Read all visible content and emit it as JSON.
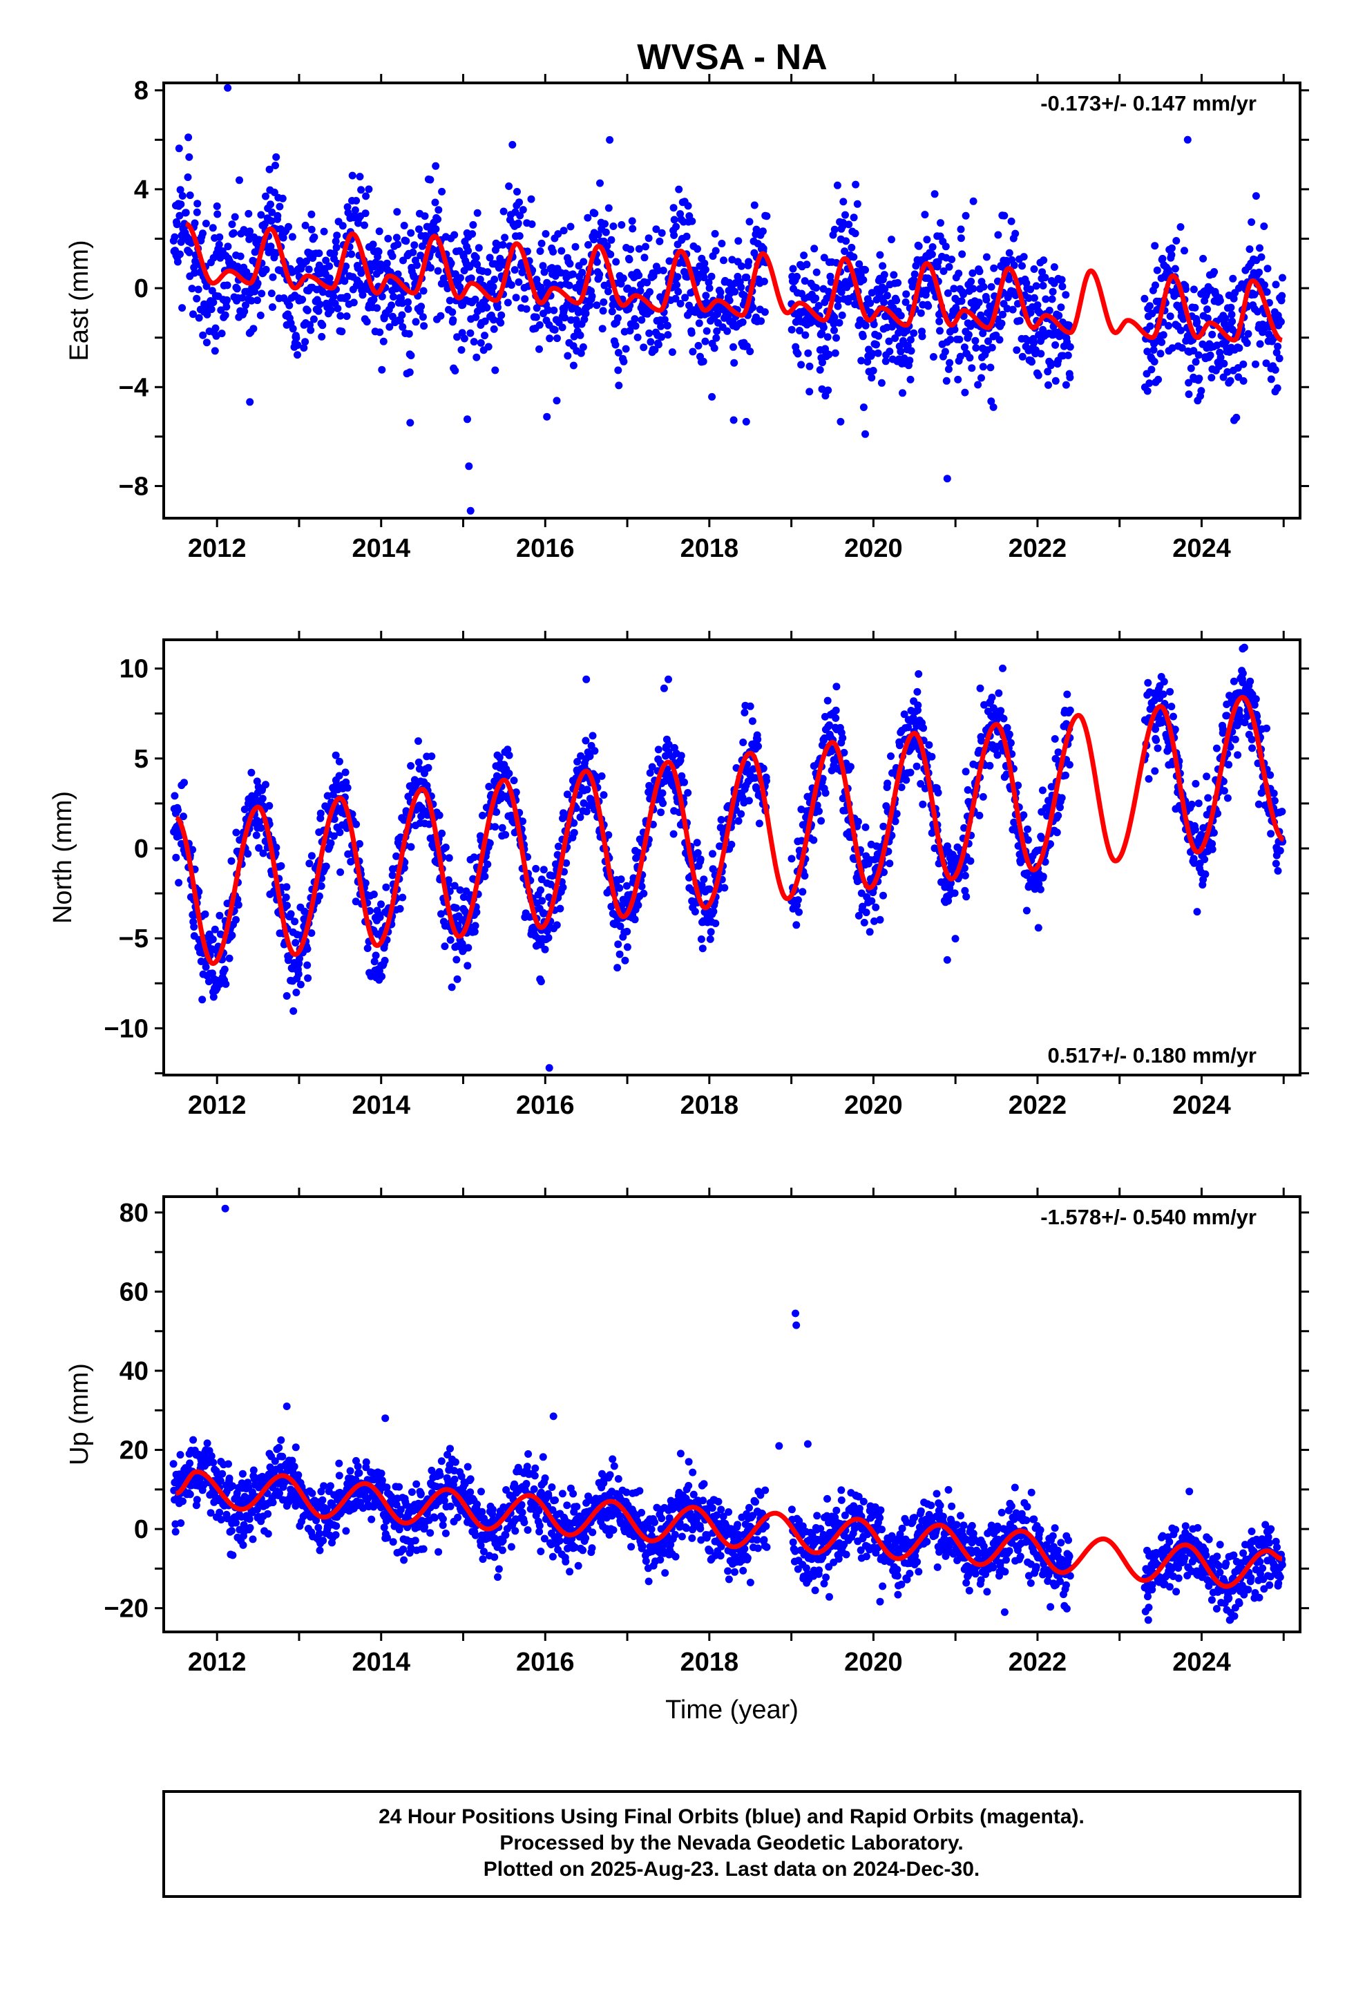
{
  "title": "WVSA - NA",
  "colors": {
    "points": "#0000ff",
    "model": "#ff0000",
    "frame": "#000000"
  },
  "chart_data": [
    {
      "type": "scatter",
      "panel": "east",
      "ylabel": "East (mm)",
      "xlim": [
        2011.35,
        2025.2
      ],
      "ylim": [
        -9.3,
        8.3
      ],
      "x_ticks": [
        2012,
        2014,
        2016,
        2018,
        2020,
        2022,
        2024
      ],
      "y_ticks": [
        -8,
        -4,
        0,
        4,
        8
      ],
      "rate_text": "-0.173+/- 0.147 mm/yr",
      "rate_position": "top-right",
      "gaps": [
        [
          2018.7,
          2019.0
        ],
        [
          2022.4,
          2023.3
        ]
      ],
      "model_peaks": [
        [
          2011.62,
          2.6
        ],
        [
          2012.15,
          0.7
        ],
        [
          2012.65,
          2.4
        ],
        [
          2013.1,
          0.5
        ],
        [
          2013.65,
          2.2
        ],
        [
          2014.1,
          0.5
        ],
        [
          2014.65,
          2.1
        ],
        [
          2015.1,
          0.2
        ],
        [
          2015.65,
          1.8
        ],
        [
          2016.1,
          0.0
        ],
        [
          2016.65,
          1.7
        ],
        [
          2017.1,
          -0.3
        ],
        [
          2017.65,
          1.5
        ],
        [
          2018.1,
          -0.5
        ],
        [
          2018.65,
          1.4
        ],
        [
          2019.1,
          -0.6
        ],
        [
          2019.65,
          1.2
        ],
        [
          2020.1,
          -0.8
        ],
        [
          2020.65,
          1.0
        ],
        [
          2021.1,
          -0.9
        ],
        [
          2021.65,
          0.8
        ],
        [
          2022.1,
          -1.1
        ],
        [
          2022.65,
          0.7
        ],
        [
          2023.1,
          -1.3
        ],
        [
          2023.65,
          0.5
        ],
        [
          2024.1,
          -1.4
        ],
        [
          2024.62,
          0.3
        ],
        [
          2024.98,
          -2.1
        ]
      ],
      "model_troughs": [
        [
          2011.95,
          0.2
        ],
        [
          2012.4,
          0.2
        ],
        [
          2012.95,
          0.0
        ],
        [
          2013.4,
          0.0
        ],
        [
          2013.95,
          -0.2
        ],
        [
          2014.4,
          -0.2
        ],
        [
          2014.95,
          -0.4
        ],
        [
          2015.4,
          -0.5
        ],
        [
          2015.95,
          -0.6
        ],
        [
          2016.4,
          -0.6
        ],
        [
          2016.95,
          -0.7
        ],
        [
          2017.4,
          -0.9
        ],
        [
          2017.95,
          -0.9
        ],
        [
          2018.4,
          -1.1
        ],
        [
          2018.95,
          -1.0
        ],
        [
          2019.4,
          -1.3
        ],
        [
          2019.95,
          -1.3
        ],
        [
          2020.4,
          -1.5
        ],
        [
          2020.95,
          -1.5
        ],
        [
          2021.4,
          -1.6
        ],
        [
          2021.95,
          -1.6
        ],
        [
          2022.4,
          -1.8
        ],
        [
          2022.95,
          -1.8
        ],
        [
          2023.4,
          -2.0
        ],
        [
          2023.95,
          -2.0
        ],
        [
          2024.4,
          -2.1
        ]
      ],
      "spread": 1.3,
      "outliers": [
        [
          2012.13,
          8.1
        ],
        [
          2011.65,
          6.1
        ],
        [
          2011.66,
          5.3
        ],
        [
          2012.72,
          5.3
        ],
        [
          2015.05,
          -5.3
        ],
        [
          2015.07,
          -7.2
        ],
        [
          2015.09,
          -9.0
        ],
        [
          2015.6,
          5.8
        ],
        [
          2016.02,
          -5.2
        ],
        [
          2017.7,
          3.5
        ],
        [
          2018.45,
          -5.4
        ],
        [
          2019.6,
          -5.4
        ],
        [
          2019.9,
          -5.9
        ],
        [
          2020.9,
          -7.7
        ],
        [
          2023.83,
          6.0
        ],
        [
          2012.4,
          -4.6
        ],
        [
          2013.85,
          4.0
        ],
        [
          2014.35,
          -3.4
        ]
      ]
    },
    {
      "type": "scatter",
      "panel": "north",
      "ylabel": "North (mm)",
      "xlim": [
        2011.35,
        2025.2
      ],
      "ylim": [
        -12.6,
        11.6
      ],
      "x_ticks": [
        2012,
        2014,
        2016,
        2018,
        2020,
        2022,
        2024
      ],
      "y_ticks": [
        -10,
        -5,
        0,
        5,
        10
      ],
      "rate_text": "0.517+/- 0.180 mm/yr",
      "rate_position": "bottom-right",
      "gaps": [
        [
          2018.7,
          2019.0
        ],
        [
          2022.4,
          2023.3
        ]
      ],
      "model_peaks": [
        [
          2011.5,
          1.7
        ],
        [
          2012.5,
          2.3
        ],
        [
          2013.5,
          2.8
        ],
        [
          2014.5,
          3.3
        ],
        [
          2015.5,
          3.8
        ],
        [
          2016.5,
          4.3
        ],
        [
          2017.5,
          4.8
        ],
        [
          2018.5,
          5.3
        ],
        [
          2019.5,
          5.9
        ],
        [
          2020.5,
          6.4
        ],
        [
          2021.5,
          6.9
        ],
        [
          2022.5,
          7.4
        ],
        [
          2023.5,
          7.9
        ],
        [
          2024.5,
          8.4
        ],
        [
          2025.0,
          0.5
        ]
      ],
      "model_troughs": [
        [
          2011.95,
          -6.4
        ],
        [
          2012.95,
          -5.9
        ],
        [
          2013.95,
          -5.4
        ],
        [
          2014.95,
          -4.9
        ],
        [
          2015.95,
          -4.4
        ],
        [
          2016.95,
          -3.8
        ],
        [
          2017.95,
          -3.3
        ],
        [
          2018.95,
          -2.8
        ],
        [
          2019.95,
          -2.2
        ],
        [
          2020.95,
          -1.7
        ],
        [
          2021.95,
          -1.2
        ],
        [
          2022.95,
          -0.7
        ],
        [
          2023.95,
          -0.2
        ]
      ],
      "spread": 1.2,
      "outliers": [
        [
          2012.85,
          -8.2
        ],
        [
          2016.05,
          -12.2
        ],
        [
          2017.5,
          9.4
        ],
        [
          2019.55,
          9.0
        ],
        [
          2020.55,
          9.7
        ],
        [
          2020.9,
          -6.2
        ],
        [
          2024.5,
          11.1
        ],
        [
          2016.5,
          9.4
        ],
        [
          2018.5,
          7.9
        ],
        [
          2014.0,
          -6.5
        ],
        [
          2015.95,
          -7.4
        ]
      ]
    },
    {
      "type": "scatter",
      "panel": "up",
      "ylabel": "Up (mm)",
      "xlabel": "Time (year)",
      "xlim": [
        2011.35,
        2025.2
      ],
      "ylim": [
        -26,
        84
      ],
      "x_ticks": [
        2012,
        2014,
        2016,
        2018,
        2020,
        2022,
        2024
      ],
      "y_ticks": [
        -20,
        0,
        20,
        40,
        60,
        80
      ],
      "rate_text": "-1.578+/- 0.540 mm/yr",
      "rate_position": "top-right",
      "gaps": [
        [
          2018.7,
          2019.0
        ],
        [
          2022.4,
          2023.3
        ]
      ],
      "model_peaks": [
        [
          2011.75,
          14.5
        ],
        [
          2012.8,
          13.5
        ],
        [
          2013.8,
          11.5
        ],
        [
          2014.8,
          10.0
        ],
        [
          2015.8,
          8.5
        ],
        [
          2016.8,
          7.0
        ],
        [
          2017.8,
          5.5
        ],
        [
          2018.8,
          4.0
        ],
        [
          2019.8,
          2.5
        ],
        [
          2020.8,
          1.0
        ],
        [
          2021.8,
          -0.5
        ],
        [
          2022.8,
          -2.5
        ],
        [
          2023.8,
          -4.0
        ],
        [
          2024.8,
          -5.5
        ]
      ],
      "model_troughs": [
        [
          2011.5,
          9.0
        ],
        [
          2012.3,
          5.0
        ],
        [
          2013.3,
          3.0
        ],
        [
          2014.3,
          1.5
        ],
        [
          2015.3,
          0.0
        ],
        [
          2016.3,
          -1.5
        ],
        [
          2017.3,
          -3.0
        ],
        [
          2018.3,
          -4.5
        ],
        [
          2019.3,
          -6.0
        ],
        [
          2020.3,
          -7.5
        ],
        [
          2021.3,
          -9.0
        ],
        [
          2022.3,
          -11.0
        ],
        [
          2023.3,
          -13.0
        ],
        [
          2024.3,
          -14.5
        ],
        [
          2024.98,
          -7.5
        ]
      ],
      "spread": 4.2,
      "outliers": [
        [
          2012.1,
          81.0
        ],
        [
          2019.05,
          54.5
        ],
        [
          2019.06,
          51.5
        ],
        [
          2012.85,
          31.0
        ],
        [
          2014.05,
          28.0
        ],
        [
          2016.1,
          28.5
        ],
        [
          2018.85,
          21.0
        ],
        [
          2019.2,
          21.5
        ],
        [
          2017.75,
          17.0
        ],
        [
          2023.85,
          9.5
        ],
        [
          2023.35,
          -23.0
        ],
        [
          2024.4,
          -22.0
        ],
        [
          2021.6,
          -21.0
        ]
      ]
    }
  ],
  "footer": {
    "line1": "24 Hour Positions Using Final Orbits (blue) and Rapid Orbits (magenta).",
    "line2": "Processed by the Nevada Geodetic Laboratory.",
    "line3": "Plotted on 2025-Aug-23. Last data on 2024-Dec-30."
  }
}
